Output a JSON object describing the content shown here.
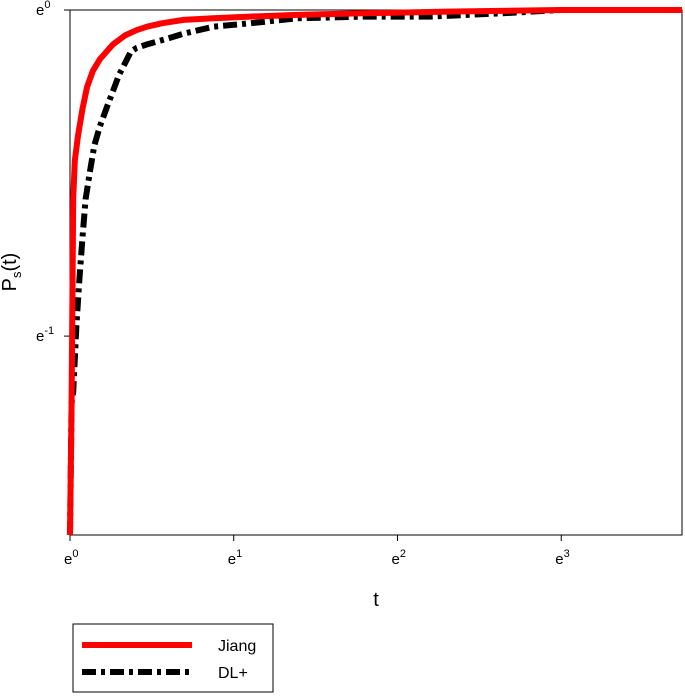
{
  "chart_data": {
    "type": "line",
    "xlabel": "t",
    "ylabel": {
      "main": "P",
      "subscript": "s",
      "suffix": "(t)"
    },
    "x_scale": "log (base e)",
    "y_scale": "log (base e)",
    "xlim": [
      1,
      42
    ],
    "ylim": [
      0.2,
      1
    ],
    "x_ticks": [
      {
        "base": "e",
        "exp": "0",
        "value": 1
      },
      {
        "base": "e",
        "exp": "1",
        "value": 2.718
      },
      {
        "base": "e",
        "exp": "2",
        "value": 7.389
      },
      {
        "base": "e",
        "exp": "3",
        "value": 20.09
      }
    ],
    "y_ticks": [
      {
        "base": "e",
        "exp": "0",
        "value": 1
      },
      {
        "base": "e",
        "exp": "-1",
        "value": 0.368
      }
    ],
    "grid": false,
    "legend_position": "bottom-left, below plot",
    "series": [
      {
        "name": "Jiang",
        "color": "#ff0000",
        "style": "solid",
        "x": [
          1,
          1.01,
          1.02,
          1.03,
          1.05,
          1.08,
          1.11,
          1.15,
          1.2,
          1.25,
          1.3,
          1.4,
          1.5,
          1.6,
          1.75,
          2.0,
          2.4,
          3.0,
          4.0,
          6.0,
          10.0,
          20.0,
          42.0
        ],
        "y": [
          0.2,
          0.3,
          0.56,
          0.63,
          0.68,
          0.74,
          0.79,
          0.83,
          0.86,
          0.88,
          0.9,
          0.925,
          0.94,
          0.95,
          0.96,
          0.97,
          0.975,
          0.98,
          0.985,
          0.99,
          0.995,
          1.0,
          1.0
        ]
      },
      {
        "name": "DL+",
        "color": "#000000",
        "style": "dash-dot",
        "x": [
          1,
          1.01,
          1.02,
          1.04,
          1.06,
          1.08,
          1.1,
          1.13,
          1.16,
          1.2,
          1.25,
          1.3,
          1.35,
          1.4,
          1.45,
          1.5,
          1.6,
          1.8,
          2.0,
          2.4,
          3.0,
          4.0,
          6.0,
          9.0,
          14.0,
          20.0,
          30.0,
          42.0
        ],
        "y": [
          0.2,
          0.3,
          0.31,
          0.38,
          0.44,
          0.5,
          0.56,
          0.61,
          0.66,
          0.7,
          0.74,
          0.78,
          0.82,
          0.85,
          0.88,
          0.89,
          0.9,
          0.915,
          0.93,
          0.95,
          0.96,
          0.975,
          0.98,
          0.98,
          0.99,
          1.0,
          1.0,
          1.0
        ]
      }
    ]
  }
}
